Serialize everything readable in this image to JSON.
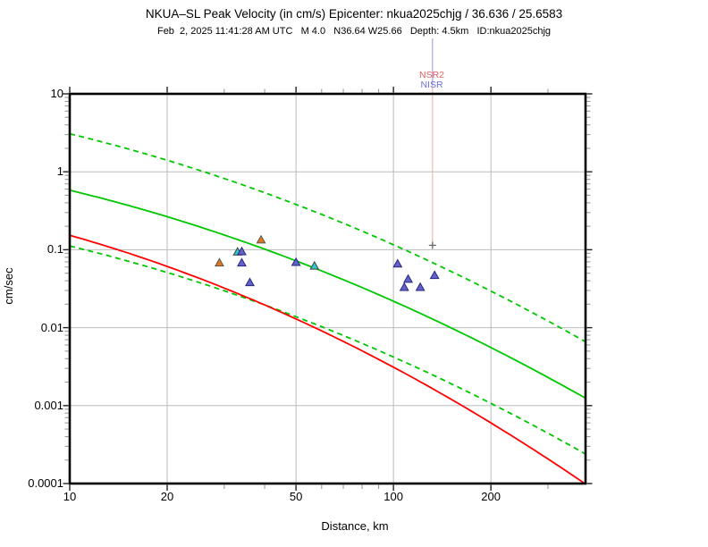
{
  "chart_data": {
    "type": "scatter",
    "title": "NKUA–SL Peak Velocity (in cm/s) Epicenter: nkua2025chjg / 36.636 / 25.6583",
    "subtitle": "Feb  2, 2025 11:41:28 AM UTC   M 4.0   N36.64 W25.66   Depth: 4.5km   ID:nkua2025chjg",
    "xlabel": "Distance, km",
    "ylabel": "cm/sec",
    "x_scale": "log",
    "y_scale": "log",
    "xlim": [
      10,
      392
    ],
    "ylim": [
      0.0001,
      10
    ],
    "x_major_ticks": [
      {
        "v": 10,
        "label": "10"
      },
      {
        "v": 20,
        "label": "20"
      },
      {
        "v": 50,
        "label": "50"
      },
      {
        "v": 100,
        "label": "100"
      },
      {
        "v": 200,
        "label": "200"
      }
    ],
    "x_minor_ticks": [
      30,
      40,
      60,
      70,
      80,
      90,
      300
    ],
    "y_major_ticks": [
      {
        "v": 10,
        "label": "10"
      },
      {
        "v": 1,
        "label": "1"
      },
      {
        "v": 0.1,
        "label": "0.1"
      },
      {
        "v": 0.01,
        "label": "0.01"
      },
      {
        "v": 0.001,
        "label": "0.001"
      },
      {
        "v": 0.0001,
        "label": "0.0001"
      }
    ],
    "grid": {
      "x": [
        20,
        50,
        100,
        200
      ],
      "y": [
        1,
        0.1,
        0.01,
        0.001
      ],
      "color": "#bbbbbb"
    },
    "curves": [
      {
        "name": "median-attenuation",
        "color": "#00c800",
        "dash": false,
        "loglog_quadratic": [
          0.3414,
          -0.155,
          -0.423
        ],
        "samples": [
          {
            "km": 10,
            "v": 0.58
          },
          {
            "km": 20,
            "v": 0.27
          },
          {
            "km": 50,
            "v": 0.072
          },
          {
            "km": 100,
            "v": 0.022
          },
          {
            "km": 200,
            "v": 0.0059
          },
          {
            "km": 390,
            "v": 0.0013
          }
        ]
      },
      {
        "name": "median-plus-sigma",
        "color": "#00c800",
        "dash": true,
        "loglog_quadratic": [
          1.0657,
          -0.155,
          -0.423
        ],
        "samples": [
          {
            "km": 10,
            "v": 3.0
          },
          {
            "km": 26,
            "v": 1.0
          },
          {
            "km": 100,
            "v": 0.115
          },
          {
            "km": 390,
            "v": 0.0067
          }
        ]
      },
      {
        "name": "median-minus-sigma",
        "color": "#00c800",
        "dash": true,
        "loglog_quadratic": [
          -0.3746,
          -0.155,
          -0.423
        ],
        "samples": [
          {
            "km": 10,
            "v": 0.112
          },
          {
            "km": 32,
            "v": 0.028
          },
          {
            "km": 100,
            "v": 0.0042
          },
          {
            "km": 390,
            "v": 0.00025
          }
        ]
      },
      {
        "name": "alternate-model",
        "color": "#ff0000",
        "dash": false,
        "loglog_quadratic": [
          -0.1709,
          -0.12,
          -0.5241
        ],
        "samples": [
          {
            "km": 10,
            "v": 0.153
          },
          {
            "km": 32,
            "v": 0.026
          },
          {
            "km": 100,
            "v": 0.0031
          },
          {
            "km": 390,
            "v": 0.0001
          }
        ]
      }
    ],
    "series": [
      {
        "name": "stations-orange",
        "marker": "triangle",
        "color": "#e0781e",
        "edge": "#555555",
        "points": [
          {
            "km": 29,
            "v": 0.068
          },
          {
            "km": 39,
            "v": 0.134
          }
        ]
      },
      {
        "name": "stations-cyan",
        "marker": "triangle",
        "color": "#2ec8c8",
        "edge": "#444444",
        "points": [
          {
            "km": 33,
            "v": 0.094
          },
          {
            "km": 57,
            "v": 0.062
          }
        ]
      },
      {
        "name": "stations-blue",
        "marker": "triangle",
        "color": "#6262ca",
        "edge": "#26267e",
        "points": [
          {
            "km": 34,
            "v": 0.095
          },
          {
            "km": 34,
            "v": 0.068
          },
          {
            "km": 36,
            "v": 0.038
          },
          {
            "km": 50,
            "v": 0.069
          },
          {
            "km": 103,
            "v": 0.066
          },
          {
            "km": 134,
            "v": 0.047
          },
          {
            "km": 111,
            "v": 0.042
          },
          {
            "km": 108,
            "v": 0.033
          },
          {
            "km": 121,
            "v": 0.033
          }
        ]
      }
    ],
    "extra_markers": [
      {
        "name": "station-cross",
        "symbol": "+",
        "km": 132,
        "v": 0.114,
        "color": "#666666"
      }
    ],
    "station_callout": {
      "km": 132,
      "labels": [
        {
          "text": "NSR2",
          "color": "#e06060"
        },
        {
          "text": "NISR",
          "color": "#6e6edf"
        }
      ],
      "line_top_color": "#9292e2",
      "line_bottom_color": "#f2a6a6"
    }
  }
}
